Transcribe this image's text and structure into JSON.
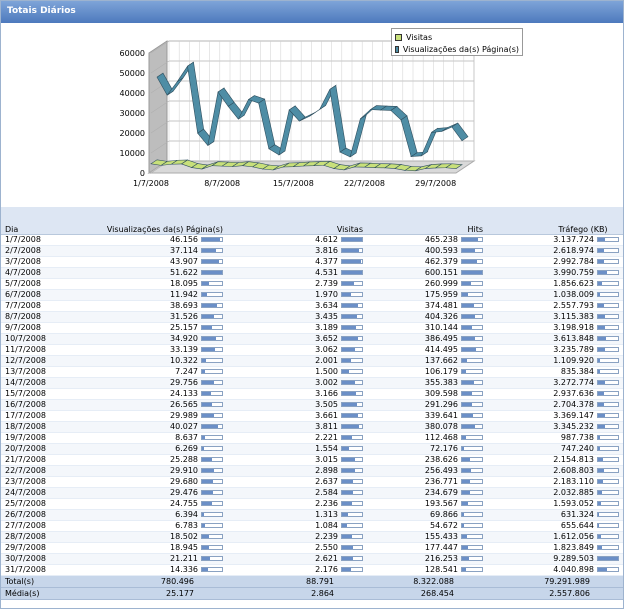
{
  "panel": {
    "title": "Totais Diários"
  },
  "chart_data": {
    "type": "line",
    "legend": [
      "Visitas",
      "Visualizações da(s) Página(s)"
    ],
    "legend_position": "top-right",
    "ylim": [
      0,
      60000
    ],
    "yticks": [
      "0",
      "10000",
      "20000",
      "30000",
      "40000",
      "50000",
      "60000"
    ],
    "xtick_labels": [
      "1/7/2008",
      "8/7/2008",
      "15/7/2008",
      "22/7/2008",
      "29/7/2008"
    ],
    "x": [
      "1/7/2008",
      "2/7/2008",
      "3/7/2008",
      "4/7/2008",
      "5/7/2008",
      "6/7/2008",
      "7/7/2008",
      "8/7/2008",
      "9/7/2008",
      "10/7/2008",
      "11/7/2008",
      "12/7/2008",
      "13/7/2008",
      "14/7/2008",
      "15/7/2008",
      "16/7/2008",
      "17/7/2008",
      "18/7/2008",
      "19/7/2008",
      "20/7/2008",
      "21/7/2008",
      "22/7/2008",
      "23/7/2008",
      "24/7/2008",
      "25/7/2008",
      "26/7/2008",
      "27/7/2008",
      "28/7/2008",
      "29/7/2008",
      "30/7/2008",
      "31/7/2008"
    ],
    "series": [
      {
        "name": "Visitas",
        "color": "#c8e07a",
        "values": [
          4612,
          3816,
          4377,
          4531,
          2739,
          1970,
          3634,
          3435,
          3189,
          3652,
          3062,
          2001,
          1500,
          3002,
          3166,
          3505,
          3661,
          3811,
          2221,
          1554,
          3015,
          2898,
          2637,
          2584,
          2236,
          1313,
          1084,
          2239,
          2550,
          2621,
          2176
        ]
      },
      {
        "name": "Visualizações da(s) Página(s)",
        "color": "#4e8da5",
        "values": [
          46156,
          37114,
          43907,
          51622,
          18095,
          11942,
          38693,
          31526,
          25157,
          34920,
          33139,
          10322,
          7247,
          29756,
          24133,
          26565,
          29989,
          40027,
          8637,
          6269,
          25288,
          29910,
          29680,
          29476,
          24755,
          6394,
          6783,
          18502,
          18945,
          21211,
          14336
        ]
      }
    ],
    "grid": true
  },
  "table": {
    "headers": [
      "Dia",
      "Visualizações da(s) Página(s)",
      "Visitas",
      "Hits",
      "Tráfego (KB)"
    ],
    "max": {
      "pages": 51622,
      "visits": 4612,
      "hits": 600151,
      "traffic": 9289503
    },
    "rows": [
      [
        "1/7/2008",
        "46.156",
        "4.612",
        "465.238",
        "3.137.724"
      ],
      [
        "2/7/2008",
        "37.114",
        "3.816",
        "400.593",
        "2.618.974"
      ],
      [
        "3/7/2008",
        "43.907",
        "4.377",
        "462.379",
        "2.992.784"
      ],
      [
        "4/7/2008",
        "51.622",
        "4.531",
        "600.151",
        "3.990.759"
      ],
      [
        "5/7/2008",
        "18.095",
        "2.739",
        "260.999",
        "1.856.623"
      ],
      [
        "6/7/2008",
        "11.942",
        "1.970",
        "175.959",
        "1.038.009"
      ],
      [
        "7/7/2008",
        "38.693",
        "3.634",
        "374.481",
        "2.557.793"
      ],
      [
        "8/7/2008",
        "31.526",
        "3.435",
        "404.326",
        "3.115.383"
      ],
      [
        "9/7/2008",
        "25.157",
        "3.189",
        "310.144",
        "3.198.918"
      ],
      [
        "10/7/2008",
        "34.920",
        "3.652",
        "386.495",
        "3.613.848"
      ],
      [
        "11/7/2008",
        "33.139",
        "3.062",
        "414.495",
        "3.235.789"
      ],
      [
        "12/7/2008",
        "10.322",
        "2.001",
        "137.662",
        "1.109.920"
      ],
      [
        "13/7/2008",
        "7.247",
        "1.500",
        "106.179",
        "835.384"
      ],
      [
        "14/7/2008",
        "29.756",
        "3.002",
        "355.383",
        "3.272.774"
      ],
      [
        "15/7/2008",
        "24.133",
        "3.166",
        "309.598",
        "2.937.636"
      ],
      [
        "16/7/2008",
        "26.565",
        "3.505",
        "291.296",
        "2.704.378"
      ],
      [
        "17/7/2008",
        "29.989",
        "3.661",
        "339.641",
        "3.369.147"
      ],
      [
        "18/7/2008",
        "40.027",
        "3.811",
        "380.078",
        "3.345.232"
      ],
      [
        "19/7/2008",
        "8.637",
        "2.221",
        "112.468",
        "987.738"
      ],
      [
        "20/7/2008",
        "6.269",
        "1.554",
        "72.176",
        "747.240"
      ],
      [
        "21/7/2008",
        "25.288",
        "3.015",
        "238.626",
        "2.154.813"
      ],
      [
        "22/7/2008",
        "29.910",
        "2.898",
        "256.493",
        "2.608.803"
      ],
      [
        "23/7/2008",
        "29.680",
        "2.637",
        "236.771",
        "2.183.110"
      ],
      [
        "24/7/2008",
        "29.476",
        "2.584",
        "234.679",
        "2.032.885"
      ],
      [
        "25/7/2008",
        "24.755",
        "2.236",
        "193.567",
        "1.593.052"
      ],
      [
        "26/7/2008",
        "6.394",
        "1.313",
        "69.866",
        "631.324"
      ],
      [
        "27/7/2008",
        "6.783",
        "1.084",
        "54.672",
        "655.644"
      ],
      [
        "28/7/2008",
        "18.502",
        "2.239",
        "155.433",
        "1.612.056"
      ],
      [
        "29/7/2008",
        "18.945",
        "2.550",
        "177.447",
        "1.823.849"
      ],
      [
        "30/7/2008",
        "21.211",
        "2.621",
        "216.253",
        "9.289.503"
      ],
      [
        "31/7/2008",
        "14.336",
        "2.176",
        "128.541",
        "4.040.898"
      ]
    ],
    "totals": [
      "Total(s)",
      "780.496",
      "88.791",
      "8.322.088",
      "79.291.989"
    ],
    "averages": [
      "Média(s)",
      "25.177",
      "2.864",
      "268.454",
      "2.557.806"
    ]
  }
}
